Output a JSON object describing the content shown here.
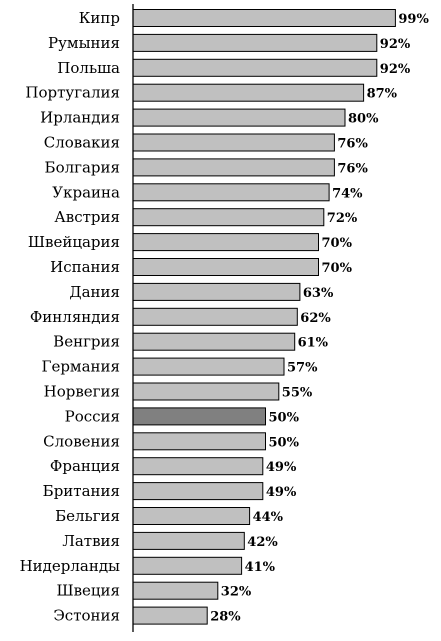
{
  "chart_data": {
    "type": "bar",
    "orientation": "horizontal",
    "categories": [
      "Кипр",
      "Румыния",
      "Польша",
      "Португалия",
      "Ирландия",
      "Словакия",
      "Болгария",
      "Украина",
      "Австрия",
      "Швейцария",
      "Испания",
      "Дания",
      "Финляндия",
      "Венгрия",
      "Германия",
      "Норвегия",
      "Россия",
      "Словения",
      "Франция",
      "Британия",
      "Бельгия",
      "Латвия",
      "Нидерланды",
      "Швеция",
      "Эстония"
    ],
    "values": [
      99,
      92,
      92,
      87,
      80,
      76,
      76,
      74,
      72,
      70,
      70,
      63,
      62,
      61,
      57,
      55,
      50,
      50,
      49,
      49,
      44,
      42,
      41,
      32,
      28
    ],
    "value_labels": [
      "99%",
      "92%",
      "92%",
      "87%",
      "80%",
      "76%",
      "76%",
      "74%",
      "72%",
      "70%",
      "70%",
      "63%",
      "62%",
      "61%",
      "57%",
      "55%",
      "50%",
      "50%",
      "49%",
      "49%",
      "44%",
      "42%",
      "41%",
      "32%",
      "28%"
    ],
    "highlight_category": "Россия",
    "xlim": [
      0,
      100
    ],
    "grid": false,
    "legend": "none",
    "colors": {
      "bar": "#c0c0c0",
      "highlight": "#808080",
      "outline": "#000000",
      "axis": "#000000"
    }
  }
}
